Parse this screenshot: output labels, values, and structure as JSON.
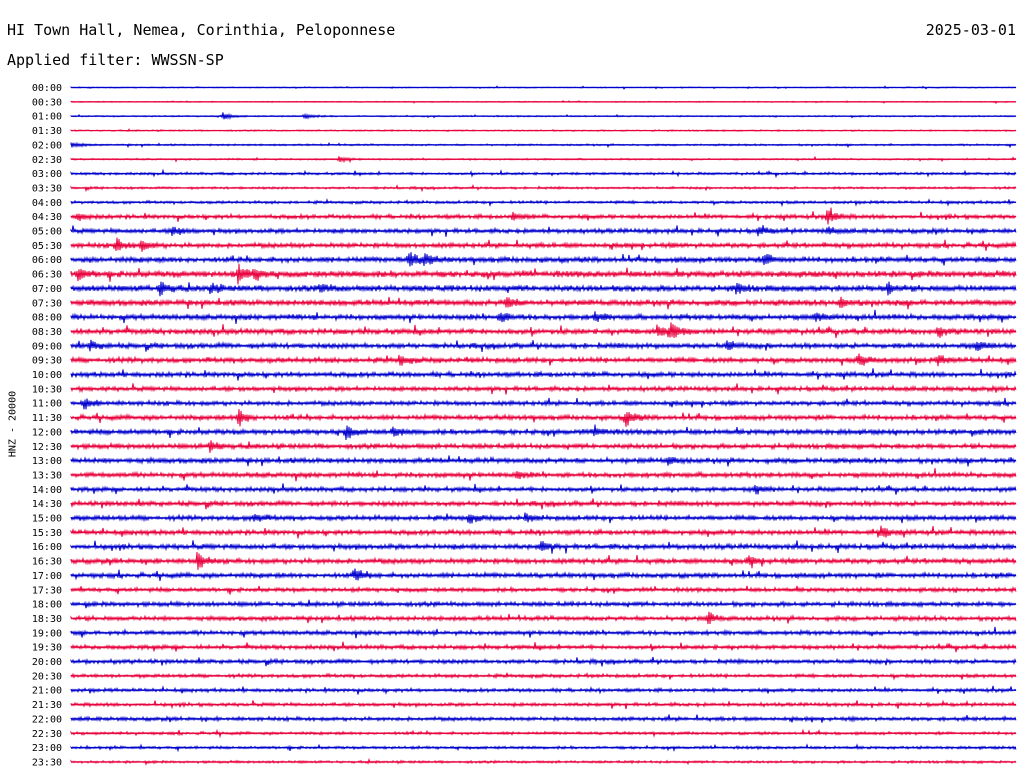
{
  "header": {
    "title": "HI Town Hall, Nemea, Corinthia, Peloponnese",
    "date": "2025-03-01",
    "filter": "Applied filter: WWSSN-SP"
  },
  "chart_data": {
    "type": "line",
    "title": "HI Town Hall, Nemea, Corinthia, Peloponnese",
    "ylabel": "HNZ - 20000",
    "xlabel": "",
    "row_labels": [
      "00:00",
      "00:30",
      "01:00",
      "01:30",
      "02:00",
      "02:30",
      "03:00",
      "03:30",
      "04:00",
      "04:30",
      "05:00",
      "05:30",
      "06:00",
      "06:30",
      "07:00",
      "07:30",
      "08:00",
      "08:30",
      "09:00",
      "09:30",
      "10:00",
      "10:30",
      "11:00",
      "11:30",
      "12:00",
      "12:30",
      "13:00",
      "13:30",
      "14:00",
      "14:30",
      "15:00",
      "15:30",
      "16:00",
      "16:30",
      "17:00",
      "17:30",
      "18:00",
      "18:30",
      "19:00",
      "19:30",
      "20:00",
      "20:30",
      "21:00",
      "21:30",
      "22:00",
      "22:30",
      "23:00",
      "23:30"
    ],
    "colors": [
      "#0000cc",
      "#e8003c"
    ],
    "noise_level": [
      0.6,
      0.6,
      0.8,
      0.8,
      1.0,
      0.9,
      1.4,
      1.3,
      1.6,
      2.4,
      2.6,
      2.8,
      3.2,
      3.8,
      3.6,
      3.4,
      3.0,
      3.2,
      3.0,
      3.0,
      2.8,
      2.6,
      2.6,
      2.8,
      3.0,
      2.8,
      3.0,
      2.8,
      2.6,
      2.8,
      2.8,
      2.8,
      3.0,
      3.0,
      2.8,
      2.4,
      2.6,
      2.6,
      2.4,
      2.4,
      2.4,
      2.0,
      2.0,
      2.0,
      2.2,
      1.6,
      1.6,
      1.4
    ],
    "events": [
      {
        "row": 2,
        "minute": 4.8,
        "amplitude": 4
      },
      {
        "row": 2,
        "minute": 7.4,
        "amplitude": 3
      },
      {
        "row": 4,
        "minute": 0.0,
        "amplitude": 3
      },
      {
        "row": 5,
        "minute": 8.5,
        "amplitude": 3
      },
      {
        "row": 9,
        "minute": 0.2,
        "amplitude": 4
      },
      {
        "row": 9,
        "minute": 14.0,
        "amplitude": 4
      },
      {
        "row": 9,
        "minute": 24.0,
        "amplitude": 9
      },
      {
        "row": 10,
        "minute": 3.2,
        "amplitude": 6
      },
      {
        "row": 10,
        "minute": 21.8,
        "amplitude": 5
      },
      {
        "row": 10,
        "minute": 24.0,
        "amplitude": 4
      },
      {
        "row": 11,
        "minute": 1.4,
        "amplitude": 7
      },
      {
        "row": 11,
        "minute": 2.2,
        "amplitude": 6
      },
      {
        "row": 12,
        "minute": 10.7,
        "amplitude": 10
      },
      {
        "row": 12,
        "minute": 11.2,
        "amplitude": 7
      },
      {
        "row": 12,
        "minute": 22.0,
        "amplitude": 7
      },
      {
        "row": 13,
        "minute": 0.2,
        "amplitude": 6
      },
      {
        "row": 13,
        "minute": 5.3,
        "amplitude": 9
      },
      {
        "row": 13,
        "minute": 5.8,
        "amplitude": 6
      },
      {
        "row": 14,
        "minute": 2.8,
        "amplitude": 8
      },
      {
        "row": 14,
        "minute": 4.4,
        "amplitude": 5
      },
      {
        "row": 14,
        "minute": 7.9,
        "amplitude": 5
      },
      {
        "row": 14,
        "minute": 21.1,
        "amplitude": 6
      },
      {
        "row": 14,
        "minute": 25.9,
        "amplitude": 7
      },
      {
        "row": 15,
        "minute": 13.8,
        "amplitude": 7
      },
      {
        "row": 15,
        "minute": 24.4,
        "amplitude": 6
      },
      {
        "row": 16,
        "minute": 13.6,
        "amplitude": 6
      },
      {
        "row": 16,
        "minute": 16.6,
        "amplitude": 5
      },
      {
        "row": 16,
        "minute": 23.6,
        "amplitude": 5
      },
      {
        "row": 17,
        "minute": 19.0,
        "amplitude": 10
      },
      {
        "row": 17,
        "minute": 18.6,
        "amplitude": 6
      },
      {
        "row": 17,
        "minute": 27.5,
        "amplitude": 5
      },
      {
        "row": 18,
        "minute": 0.6,
        "amplitude": 5
      },
      {
        "row": 18,
        "minute": 20.8,
        "amplitude": 5
      },
      {
        "row": 18,
        "minute": 28.7,
        "amplitude": 6
      },
      {
        "row": 19,
        "minute": 10.4,
        "amplitude": 6
      },
      {
        "row": 19,
        "minute": 25.0,
        "amplitude": 7
      },
      {
        "row": 19,
        "minute": 27.5,
        "amplitude": 5
      },
      {
        "row": 22,
        "minute": 0.4,
        "amplitude": 6
      },
      {
        "row": 23,
        "minute": 5.3,
        "amplitude": 9
      },
      {
        "row": 23,
        "minute": 17.6,
        "amplitude": 9
      },
      {
        "row": 24,
        "minute": 8.7,
        "amplitude": 8
      },
      {
        "row": 24,
        "minute": 10.2,
        "amplitude": 5
      },
      {
        "row": 24,
        "minute": 16.6,
        "amplitude": 6
      },
      {
        "row": 25,
        "minute": 4.4,
        "amplitude": 7
      },
      {
        "row": 26,
        "minute": 18.9,
        "amplitude": 5
      },
      {
        "row": 27,
        "minute": 14.1,
        "amplitude": 4
      },
      {
        "row": 28,
        "minute": 21.7,
        "amplitude": 5
      },
      {
        "row": 30,
        "minute": 5.8,
        "amplitude": 5
      },
      {
        "row": 30,
        "minute": 12.6,
        "amplitude": 5
      },
      {
        "row": 30,
        "minute": 14.4,
        "amplitude": 4
      },
      {
        "row": 31,
        "minute": 25.7,
        "amplitude": 7
      },
      {
        "row": 32,
        "minute": 14.9,
        "amplitude": 6
      },
      {
        "row": 33,
        "minute": 4.0,
        "amplitude": 9
      },
      {
        "row": 33,
        "minute": 21.5,
        "amplitude": 5
      },
      {
        "row": 34,
        "minute": 9.0,
        "amplitude": 7
      },
      {
        "row": 37,
        "minute": 20.2,
        "amplitude": 7
      }
    ]
  }
}
